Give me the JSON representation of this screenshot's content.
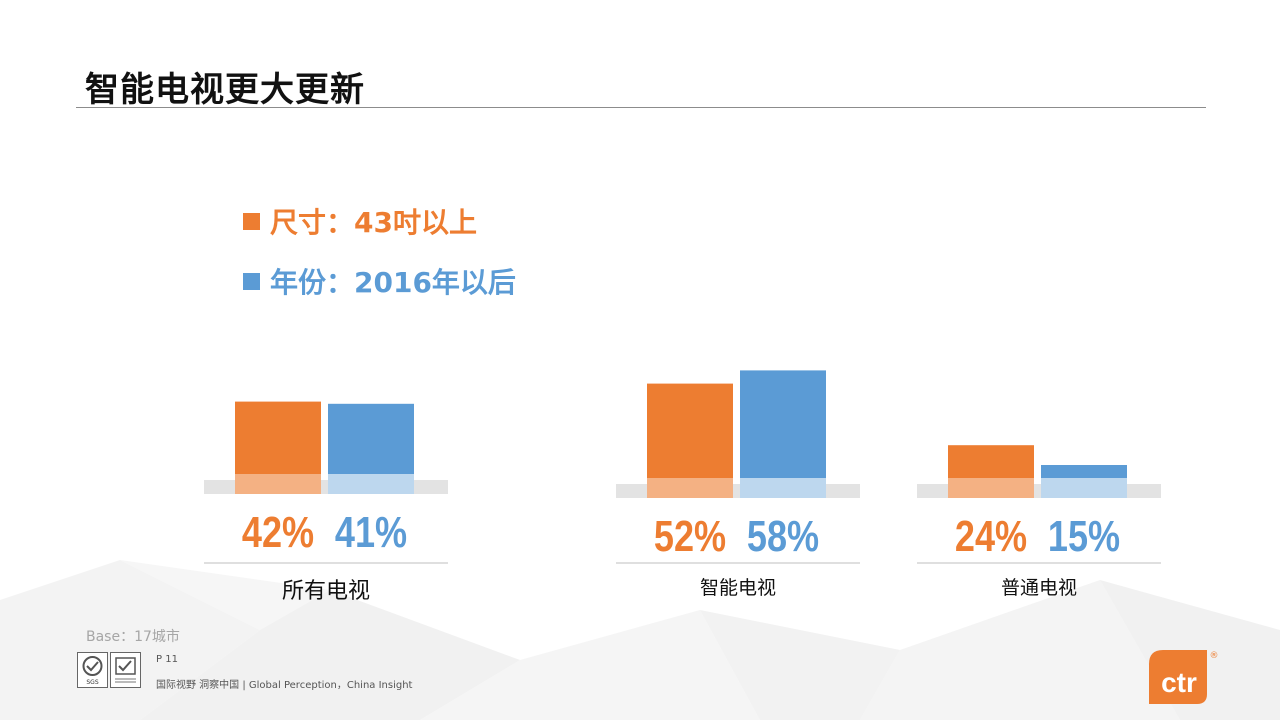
{
  "page": {
    "title": "智能电视更大更新",
    "base_note": "Base：17城市",
    "page_number": "P 11",
    "slogan": "国际视野 洞察中国 | Global Perception，China Insight",
    "logo_text": "ctr",
    "registered_mark": "®",
    "cert_badge_text": "SGS"
  },
  "colors": {
    "orange": "#ED7D31",
    "orange_light": "#F4B183",
    "blue": "#5B9BD5",
    "blue_light": "#BDD7EE",
    "baseline_gray": "#E3E3E3"
  },
  "legend": [
    {
      "label": "尺寸：43吋以上",
      "color": "#ED7D31"
    },
    {
      "label": "年份：2016年以后",
      "color": "#5B9BD5"
    }
  ],
  "chart_data": {
    "type": "bar",
    "categories": [
      "所有电视",
      "智能电视",
      "普通电视"
    ],
    "series": [
      {
        "name": "尺寸：43吋以上",
        "values": [
          42,
          52,
          24
        ],
        "labels": [
          "42%",
          "52%",
          "24%"
        ]
      },
      {
        "name": "年份：2016年以后",
        "values": [
          41,
          58,
          15
        ],
        "labels": [
          "41%",
          "58%",
          "15%"
        ]
      }
    ],
    "unit": "%",
    "ylim": [
      0,
      100
    ],
    "grid": false,
    "legend_position": "top-left"
  }
}
